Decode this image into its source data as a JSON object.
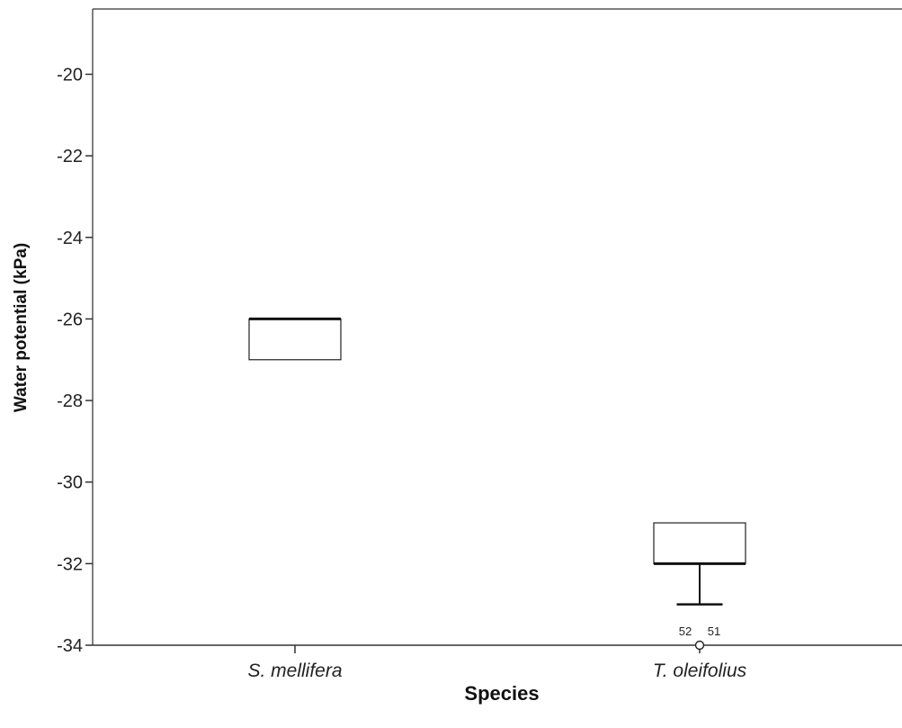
{
  "chart_data": {
    "type": "boxplot",
    "xlabel": "Species",
    "ylabel": "Water potential (kPa)",
    "ylim": [
      -34,
      -18.4
    ],
    "yticks": [
      -20,
      -22,
      -24,
      -26,
      -28,
      -30,
      -32,
      -34
    ],
    "ytick_labels": [
      "-20",
      "-22",
      "-24",
      "-26",
      "-28",
      "-30",
      "-32",
      "-34"
    ],
    "categories": [
      "S. mellifera",
      "T. oleifolius"
    ],
    "boxes": [
      {
        "category": "S. mellifera",
        "whisker_low": -27,
        "q1": -27,
        "median": -26,
        "q3": -26,
        "whisker_high": -26,
        "outliers": []
      },
      {
        "category": "T. oleifolius",
        "whisker_low": -33,
        "q1": -32,
        "median": -32,
        "q3": -31,
        "whisker_high": -31,
        "outliers": [
          {
            "value": -34,
            "labels": [
              "52",
              "51"
            ]
          }
        ]
      }
    ],
    "grid": false,
    "legend": "none"
  }
}
